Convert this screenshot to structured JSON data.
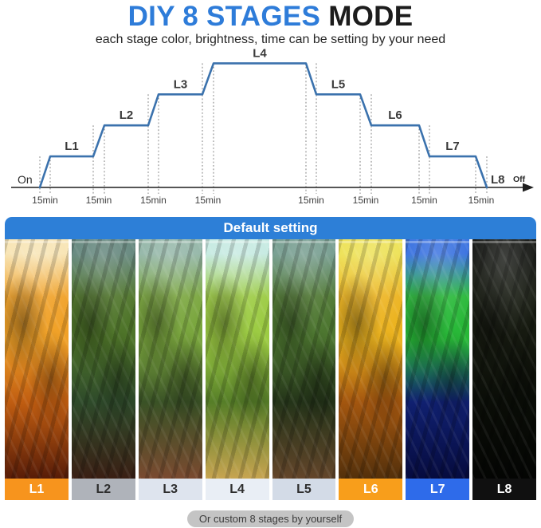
{
  "header": {
    "title_primary": "DIY 8 STAGES",
    "title_secondary": "MODE",
    "title_primary_color": "#2e7cd9",
    "title_secondary_color": "#1c1c1c",
    "subtitle": "each stage color, brightness, time can be setting by your need"
  },
  "chart_data": {
    "type": "line",
    "style": "step",
    "title": "DIY 8 stages brightness timeline",
    "line_color": "#3b72ad",
    "axis_color": "#1f1f1f",
    "grid": "dotted-verticals",
    "start_label": "On",
    "end_label": "Off",
    "interval_minutes": 15,
    "x_ticks": [
      "15min",
      "15min",
      "15min",
      "15min",
      "15min",
      "15min",
      "15min",
      "15min"
    ],
    "ylim": [
      0,
      4
    ],
    "stages": [
      {
        "label": "L1",
        "level": 1
      },
      {
        "label": "L2",
        "level": 2
      },
      {
        "label": "L3",
        "level": 3
      },
      {
        "label": "L4",
        "level": 4
      },
      {
        "label": "L5",
        "level": 3
      },
      {
        "label": "L6",
        "level": 2
      },
      {
        "label": "L7",
        "level": 1
      },
      {
        "label": "L8",
        "level": 0
      }
    ]
  },
  "default_panel": {
    "label": "Default setting",
    "band_color": "#2d7fd7",
    "stages": [
      {
        "label": "L1",
        "label_bg": "#f7941d",
        "label_fg": "#ffffff",
        "photo_desc": "aquarium-warm-orange-light",
        "theme": [
          "#f7e3b0",
          "#f0a128",
          "#c05d11",
          "#571c08"
        ]
      },
      {
        "label": "L2",
        "label_bg": "#afb3ba",
        "label_fg": "#2e2e2e",
        "photo_desc": "aquarium-dim-green-light",
        "theme": [
          "#5d8177",
          "#4e7429",
          "#2e4a2a",
          "#3a1f14"
        ]
      },
      {
        "label": "L3",
        "label_bg": "#dee4ee",
        "label_fg": "#2e2e2e",
        "photo_desc": "aquarium-natural-green-light",
        "theme": [
          "#8fb3a4",
          "#7aa63e",
          "#3a5226",
          "#7a4a30"
        ]
      },
      {
        "label": "L4",
        "label_bg": "#e9eef5",
        "label_fg": "#2e2e2e",
        "photo_desc": "aquarium-bright-daylight",
        "theme": [
          "#c3e9e0",
          "#9ccb43",
          "#567e28",
          "#c7a450"
        ]
      },
      {
        "label": "L5",
        "label_bg": "#d3dbe7",
        "label_fg": "#2e2e2e",
        "photo_desc": "aquarium-soft-green-light",
        "theme": [
          "#6f988a",
          "#4d7630",
          "#243419",
          "#63452a"
        ]
      },
      {
        "label": "L6",
        "label_bg": "#f89e1b",
        "label_fg": "#ffffff",
        "photo_desc": "aquarium-golden-light",
        "theme": [
          "#ece04e",
          "#ecb31f",
          "#a3560f",
          "#53300b"
        ]
      },
      {
        "label": "L7",
        "label_bg": "#2e6bea",
        "label_fg": "#ffffff",
        "photo_desc": "aquarium-blue-moonlight",
        "theme": [
          "#2f6ade",
          "#28b838",
          "#102070",
          "#060b3e"
        ]
      },
      {
        "label": "L8",
        "label_bg": "#101010",
        "label_fg": "#ffffff",
        "photo_desc": "aquarium-lights-off",
        "theme": [
          "#0b0d09",
          "#161a10",
          "#0a0d07",
          "#040503"
        ]
      }
    ],
    "footnote": "Or custom 8 stages by yourself",
    "footnote_bg": "#c4c4c4"
  }
}
